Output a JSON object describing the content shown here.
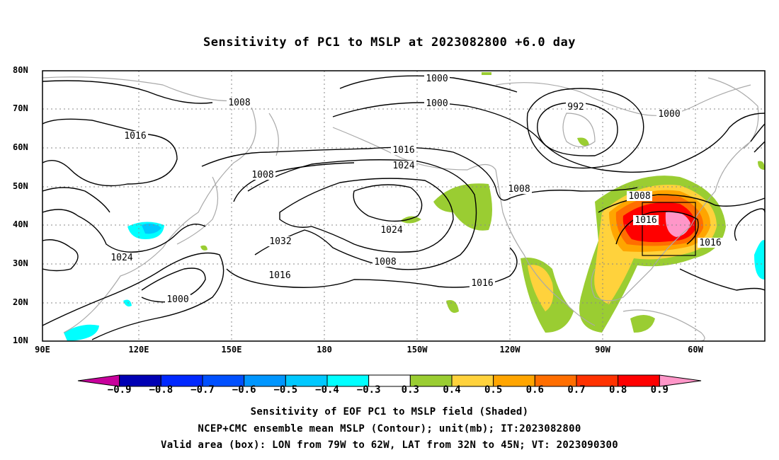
{
  "title": "Sensitivity of PC1 to MSLP at 2023082800 +6.0 day",
  "lat_labels": [
    "80N",
    "70N",
    "60N",
    "50N",
    "40N",
    "30N",
    "20N",
    "10N"
  ],
  "lon_labels": [
    "90E",
    "120E",
    "150E",
    "180",
    "150W",
    "120W",
    "90W",
    "60W"
  ],
  "contour_labels": [
    "1000",
    "1000",
    "1008",
    "992",
    "1000",
    "1016",
    "1016",
    "1024",
    "1008",
    "1008",
    "1008",
    "1016",
    "1024",
    "1032",
    "1016",
    "1024",
    "1008",
    "1016",
    "1016",
    "1000"
  ],
  "colorbar": {
    "labels": [
      "−0.9",
      "−0.8",
      "−0.7",
      "−0.6",
      "−0.5",
      "−0.4",
      "−0.3",
      "0.3",
      "0.4",
      "0.5",
      "0.6",
      "0.7",
      "0.8",
      "0.9"
    ],
    "colors": [
      "#c8009c",
      "#0000b4",
      "#0028ff",
      "#0050ff",
      "#0096ff",
      "#00c8ff",
      "#00ffff",
      "#ffffff",
      "#9acd32",
      "#ffd23c",
      "#ffa500",
      "#ff6e00",
      "#ff3200",
      "#ff0000",
      "#ff96c8"
    ]
  },
  "captions": [
    "Sensitivity of EOF PC1 to MSLP field (Shaded)",
    "NCEP+CMC ensemble mean MSLP (Contour); unit(mb); IT:2023082800",
    "Valid area (box): LON from 79W to 62W, LAT from 32N to 45N; VT: 2023090300"
  ]
}
